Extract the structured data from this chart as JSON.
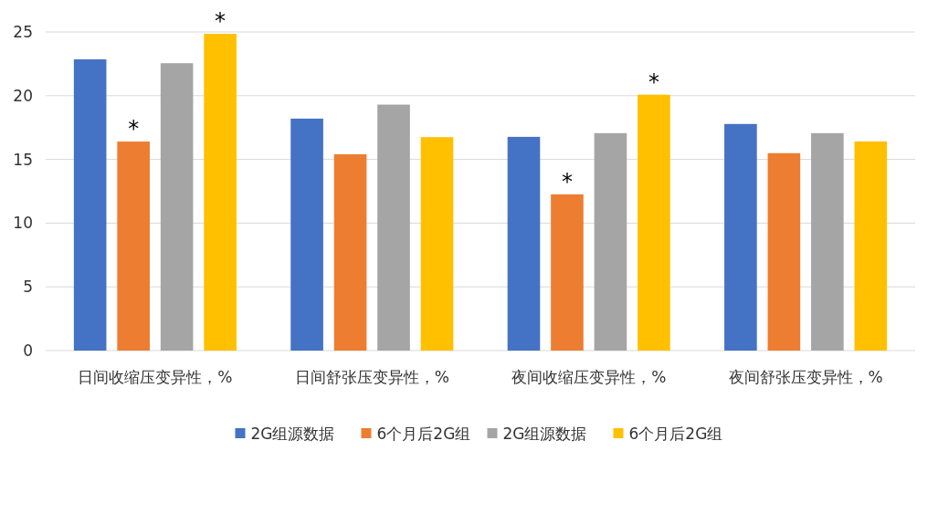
{
  "chart_data": {
    "type": "bar",
    "categories": [
      "日间收缩压变异性，%",
      "日间舒张压变异性，%",
      "夜间收缩压变异性，%",
      "夜间舒张压变异性，%"
    ],
    "series": [
      {
        "name": "2G组源数据",
        "color": "#4472c4",
        "values": [
          22.85,
          18.2,
          16.77,
          17.78
        ]
      },
      {
        "name": "6个月后2G组",
        "color": "#ed7d31",
        "values": [
          16.4,
          15.4,
          12.26,
          15.49
        ],
        "value_labels": [
          "*",
          null,
          "*",
          null
        ]
      },
      {
        "name": "2G组源数据",
        "color": "#a5a5a5",
        "values": [
          22.55,
          19.3,
          17.06,
          17.06
        ]
      },
      {
        "name": "6个月后2G组",
        "color": "#ffc000",
        "values": [
          24.85,
          16.75,
          20.08,
          16.41
        ],
        "value_labels": [
          "*",
          null,
          "*",
          null
        ]
      }
    ],
    "ylim": [
      0,
      25
    ],
    "yticks": [
      0,
      5,
      10,
      15,
      20,
      25
    ],
    "grid": "y",
    "legend": "bottom"
  }
}
